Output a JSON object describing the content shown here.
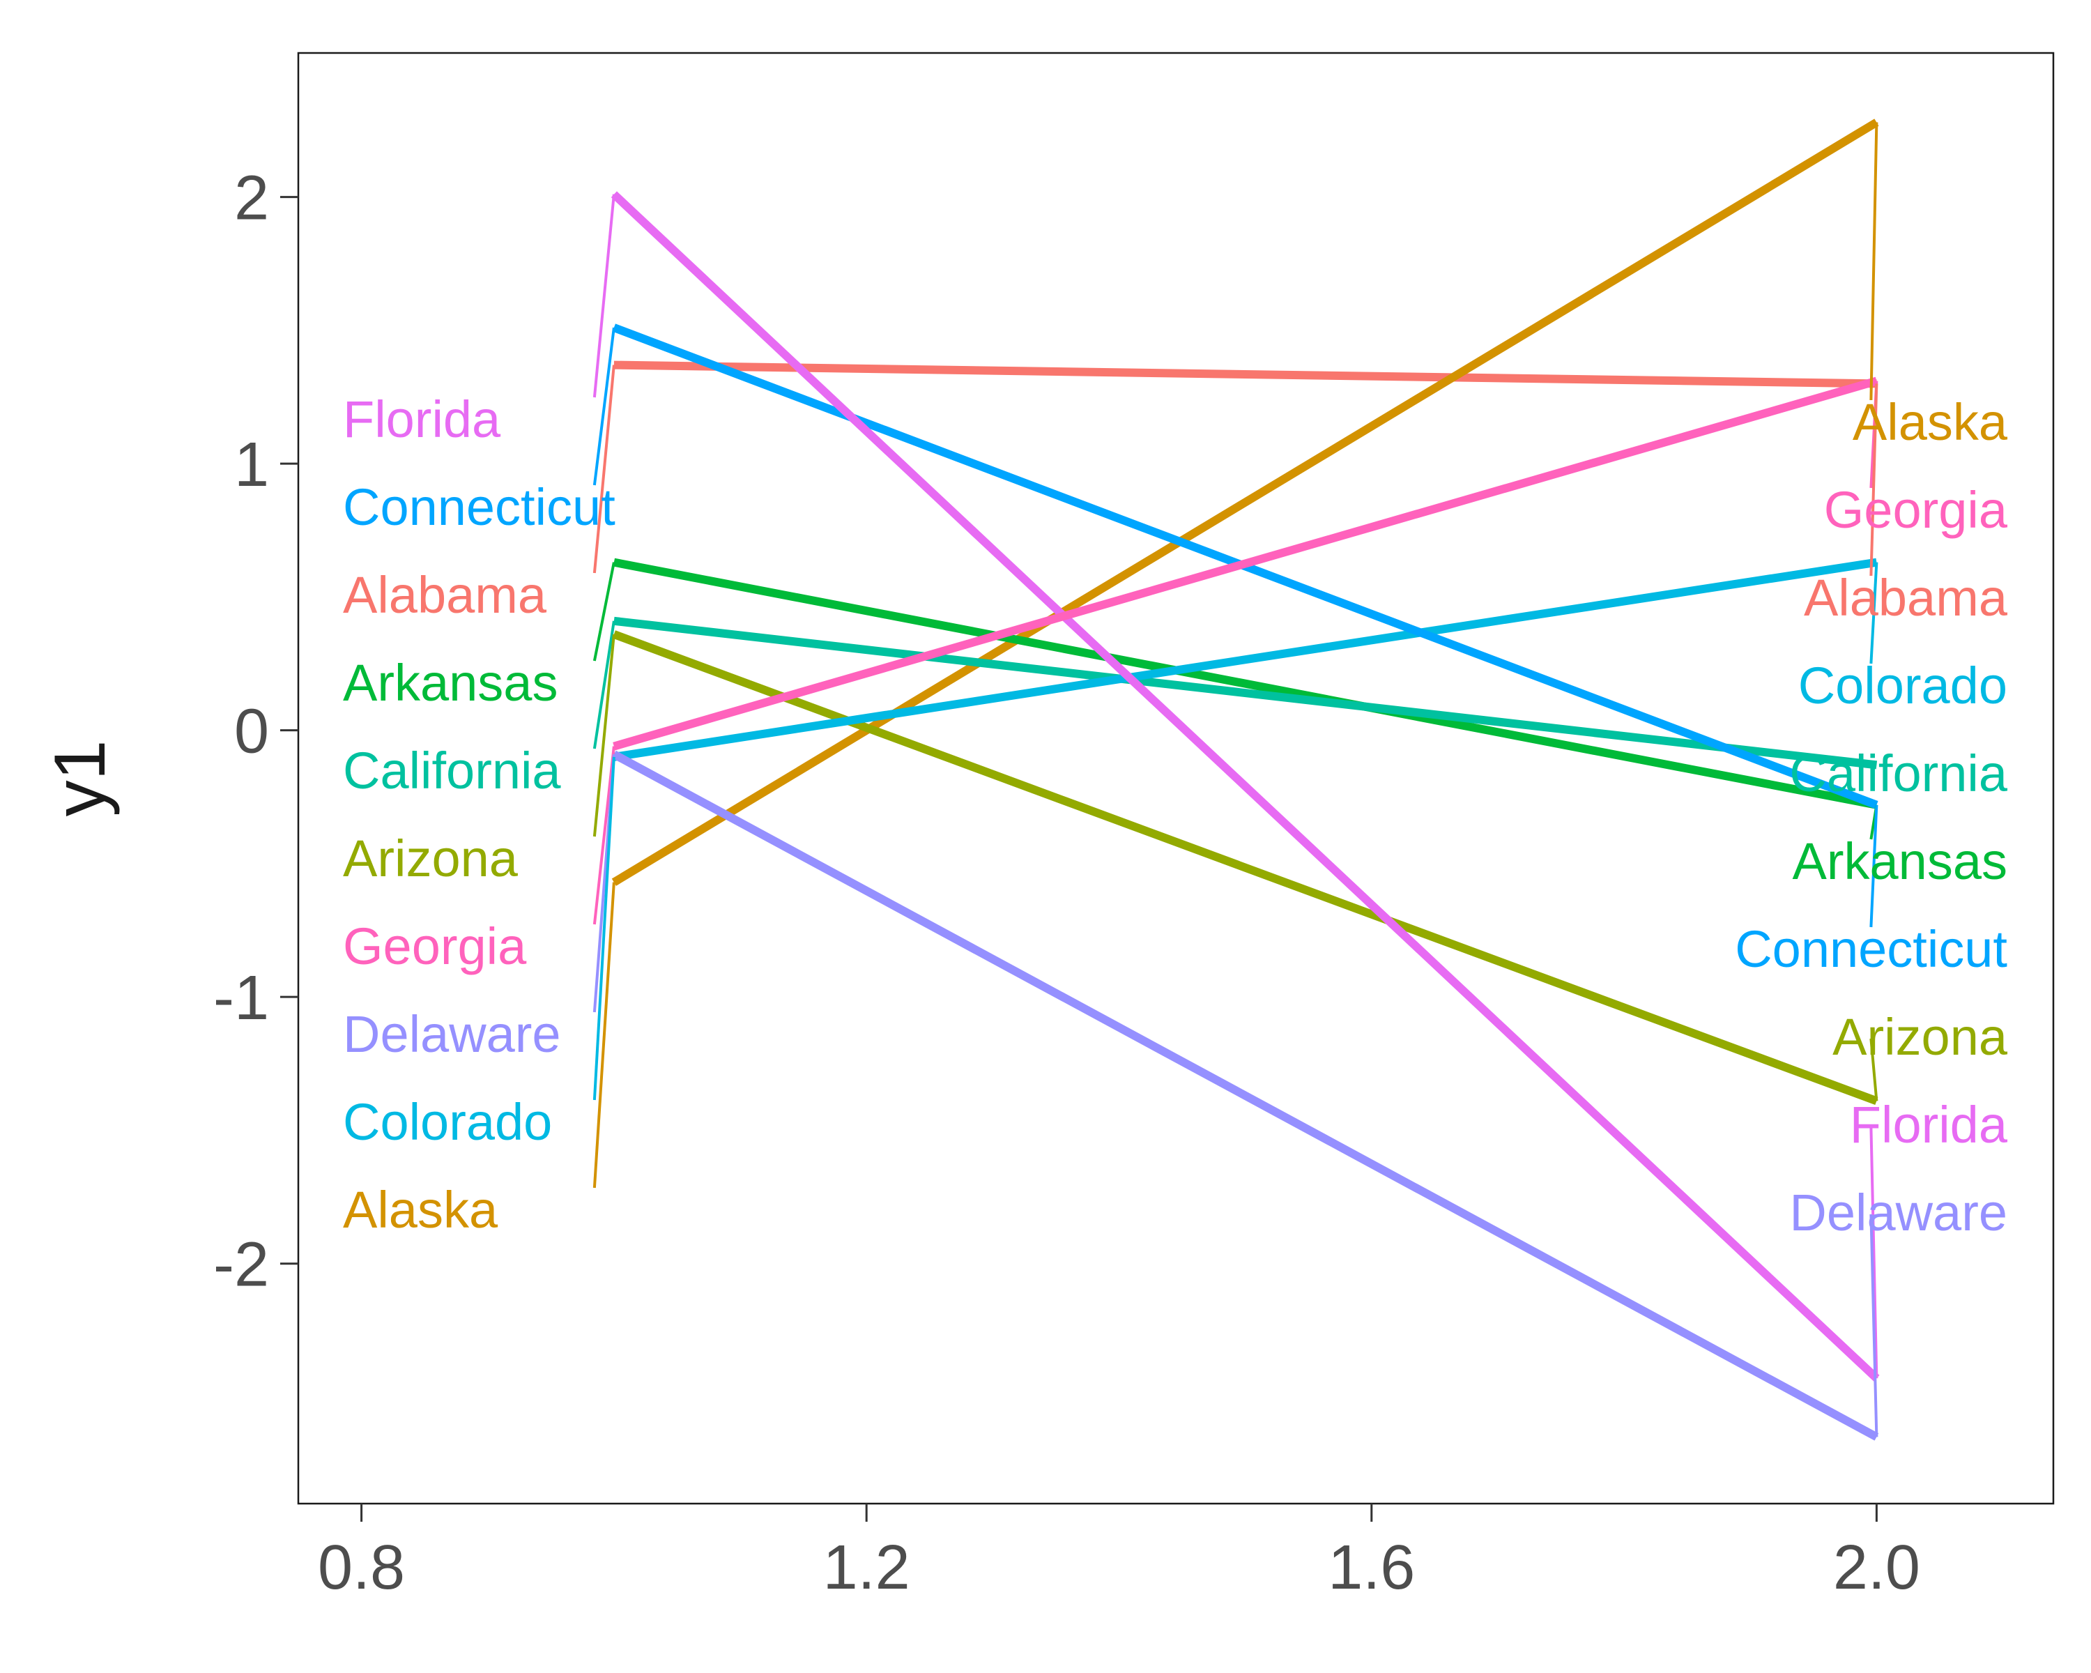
{
  "chart_data": {
    "type": "line",
    "ylabel": "y1",
    "xlabel": "",
    "title": "",
    "xlim": [
      0.75,
      2.14
    ],
    "ylim": [
      -2.9,
      2.54
    ],
    "x_ticks": [
      0.8,
      1.2,
      1.6,
      2.0
    ],
    "x_tick_labels": [
      "0.8",
      "1.2",
      "1.6",
      "2.0"
    ],
    "y_ticks": [
      -2,
      -1,
      0,
      1,
      2
    ],
    "y_tick_labels": [
      "-2",
      "-1",
      "0",
      "1",
      "2"
    ],
    "grid": false,
    "legend": "none",
    "x": [
      1,
      2
    ],
    "series": [
      {
        "name": "Alabama",
        "color": "#F8766D",
        "values": [
          1.37,
          1.3
        ]
      },
      {
        "name": "Alaska",
        "color": "#D39200",
        "values": [
          -0.57,
          2.28
        ]
      },
      {
        "name": "Arizona",
        "color": "#93AA00",
        "values": [
          0.36,
          -1.39
        ]
      },
      {
        "name": "Arkansas",
        "color": "#00BA38",
        "values": [
          0.63,
          -0.28
        ]
      },
      {
        "name": "California",
        "color": "#00C19F",
        "values": [
          0.41,
          -0.13
        ]
      },
      {
        "name": "Colorado",
        "color": "#00B9E3",
        "values": [
          -0.1,
          0.63
        ]
      },
      {
        "name": "Connecticut",
        "color": "#00A5FF",
        "values": [
          1.51,
          -0.28
        ]
      },
      {
        "name": "Delaware",
        "color": "#9590FF",
        "values": [
          -0.09,
          -2.65
        ]
      },
      {
        "name": "Florida",
        "color": "#E76BF3",
        "values": [
          2.01,
          -2.43
        ]
      },
      {
        "name": "Georgia",
        "color": "#FF62BC",
        "values": [
          -0.06,
          1.31
        ]
      }
    ]
  }
}
